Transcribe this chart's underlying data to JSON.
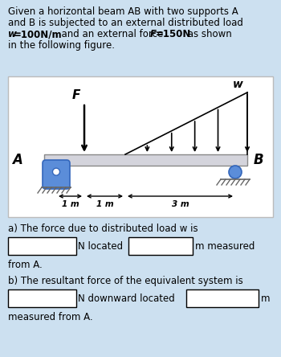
{
  "bg_color": "#cce0f0",
  "beam_color": "#d4d4dc",
  "beam_edge": "#888888",
  "support_blue": "#5b8dd9",
  "support_edge": "#3366bb",
  "hatch_color": "#666666",
  "black": "#000000",
  "white": "#ffffff",
  "diag_bg": "#ffffff",
  "diag_edge": "#bbbbbb",
  "line1": "Given a horizontal beam AB with two supports A",
  "line2": "and B is subjected to an external distributed load",
  "line3a": "w=100N/m",
  "line3b": ", and an external force ",
  "line3c": "F=150N",
  "line3d": " as shown",
  "line4": "in the following figure.",
  "label_A": "A",
  "label_B": "B",
  "label_F": "F",
  "label_w": "w",
  "dim1": "1 m",
  "dim2": "1 m",
  "dim3": "3 m",
  "sa_line": "a) The force due to distributed load w is",
  "sa_mid1": "N located",
  "sa_mid2": "m measured",
  "sa_end": "from A.",
  "sb_line": "b) The resultant force of the equivalent system is",
  "sb_mid1": "N downward located",
  "sb_end": "m",
  "sb_last": "measured from A."
}
